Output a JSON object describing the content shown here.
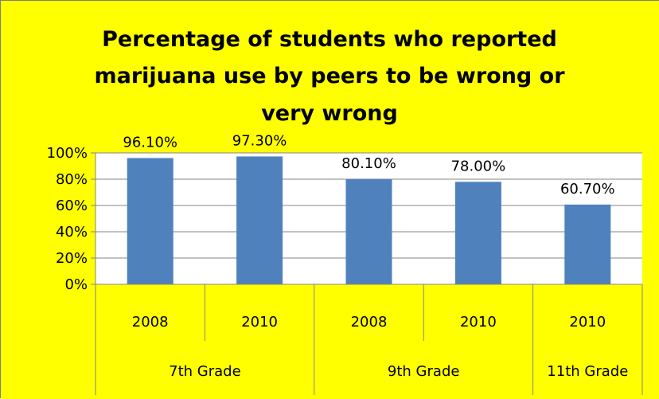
{
  "colors": {
    "background": "#ffff00",
    "plot_background": "#ffffff",
    "bar": "#4f81bd",
    "gridline": "#868686",
    "axis": "#868686"
  },
  "chart_data": {
    "type": "bar",
    "title": "Percentage of students who reported marijuana use by peers to be wrong or very wrong",
    "title_lines": [
      "Percentage of students who reported",
      "marijuana use by peers to be wrong or",
      "very wrong"
    ],
    "xlabel": "",
    "ylabel": "",
    "ylim": [
      0,
      100
    ],
    "y_ticks": [
      "0%",
      "20%",
      "40%",
      "60%",
      "80%",
      "100%"
    ],
    "grid": true,
    "legend": "none",
    "groups": [
      {
        "name": "7th Grade",
        "categories": [
          "2008",
          "2010"
        ]
      },
      {
        "name": "9th Grade",
        "categories": [
          "2008",
          "2010"
        ]
      },
      {
        "name": "11th Grade",
        "categories": [
          "2010"
        ]
      }
    ],
    "categories": [
      "2008",
      "2010",
      "2008",
      "2010",
      "2010"
    ],
    "values": [
      96.1,
      97.3,
      80.1,
      78.0,
      60.7
    ],
    "data_labels": [
      "96.10%",
      "97.30%",
      "80.10%",
      "78.00%",
      "60.70%"
    ]
  }
}
